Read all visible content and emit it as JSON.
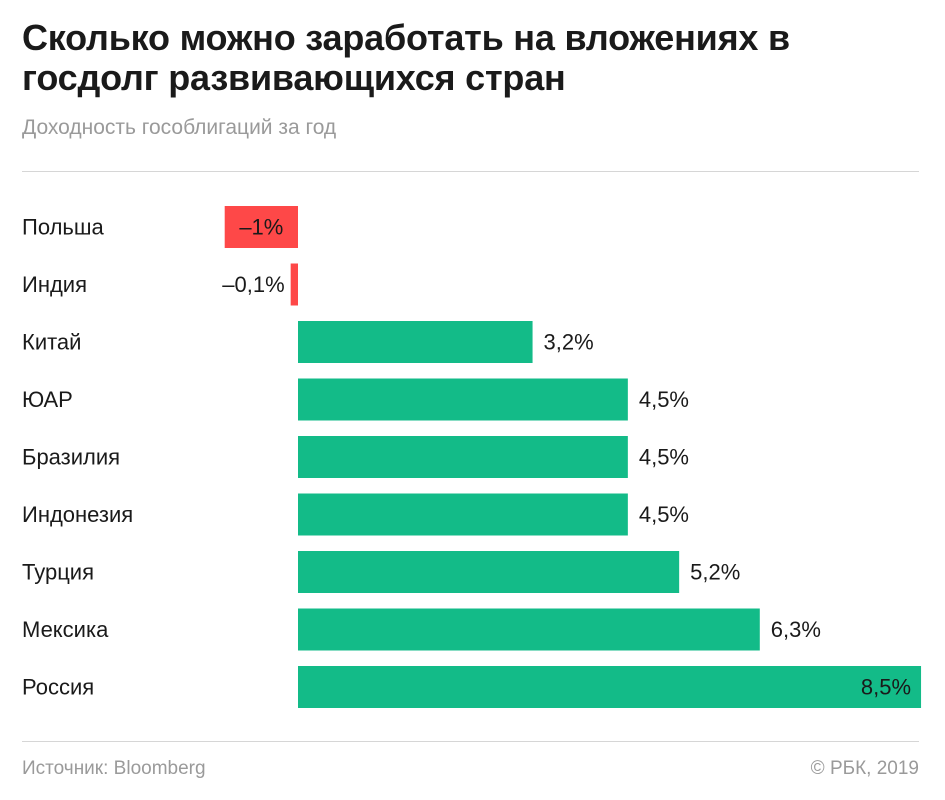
{
  "title": "Сколько можно заработать на вложениях в госдолг развивающихся стран",
  "subtitle": "Доходность гособлигаций за год",
  "source": "Источник: Bloomberg",
  "copyright": "© РБК, 2019",
  "colors": {
    "positive": "#13bb88",
    "negative": "#fe4848",
    "text": "#1a1a1a",
    "muted": "#9a9a9a"
  },
  "chart_data": {
    "type": "bar",
    "orientation": "horizontal",
    "categories": [
      "Польша",
      "Индия",
      "Китай",
      "ЮАР",
      "Бразилия",
      "Индонезия",
      "Турция",
      "Мексика",
      "Россия"
    ],
    "values": [
      -1,
      -0.1,
      3.2,
      4.5,
      4.5,
      4.5,
      5.2,
      6.3,
      8.5
    ],
    "value_labels": [
      "–1%",
      "–0,1%",
      "3,2%",
      "4,5%",
      "4,5%",
      "4,5%",
      "5,2%",
      "6,3%",
      "8,5%"
    ],
    "unit": "%",
    "grid": false,
    "legend": "none"
  }
}
